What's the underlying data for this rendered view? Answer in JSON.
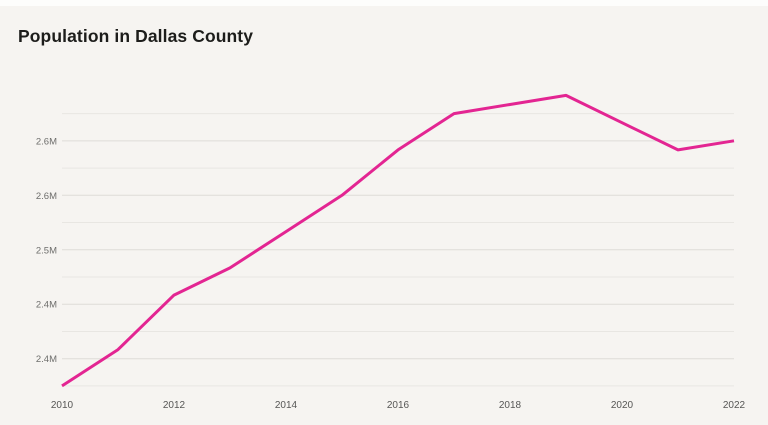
{
  "page": {
    "background_color": "#f6f4f1",
    "top_strip_color": "#fdfdfc"
  },
  "header": {
    "title": "Population in Dallas County",
    "title_color": "#1d1d1b"
  },
  "chart_data": {
    "type": "line",
    "title": "Population in Dallas County",
    "series": [
      {
        "name": "Population",
        "color": "#e32592",
        "x": [
          2010,
          2011,
          2012,
          2013,
          2014,
          2015,
          2016,
          2017,
          2018,
          2019,
          2020,
          2021,
          2022
        ],
        "values_millions": [
          2.35,
          2.39,
          2.45,
          2.48,
          2.52,
          2.56,
          2.61,
          2.65,
          2.66,
          2.67,
          2.64,
          2.61,
          2.62
        ]
      }
    ],
    "xlabel": "",
    "ylabel": "",
    "xlim": [
      2010,
      2022
    ],
    "ylim": [
      2.34,
      2.676
    ],
    "xticks": [
      {
        "value": 2010,
        "label": "2010"
      },
      {
        "value": 2012,
        "label": "2012"
      },
      {
        "value": 2014,
        "label": "2014"
      },
      {
        "value": 2016,
        "label": "2016"
      },
      {
        "value": 2018,
        "label": "2018"
      },
      {
        "value": 2020,
        "label": "2020"
      },
      {
        "value": 2022,
        "label": "2022"
      }
    ],
    "yticks": [
      {
        "value": 2.65,
        "label": "",
        "major": false
      },
      {
        "value": 2.62,
        "label": "2.6M",
        "major": true
      },
      {
        "value": 2.59,
        "label": "",
        "major": false
      },
      {
        "value": 2.56,
        "label": "2.6M",
        "major": true
      },
      {
        "value": 2.53,
        "label": "",
        "major": false
      },
      {
        "value": 2.5,
        "label": "2.5M",
        "major": true
      },
      {
        "value": 2.47,
        "label": "",
        "major": false
      },
      {
        "value": 2.44,
        "label": "2.4M",
        "major": true
      },
      {
        "value": 2.41,
        "label": "",
        "major": false
      },
      {
        "value": 2.38,
        "label": "2.4M",
        "major": true
      },
      {
        "value": 2.35,
        "label": "",
        "major": false
      }
    ],
    "grid": "horizontal",
    "legend": "none"
  }
}
